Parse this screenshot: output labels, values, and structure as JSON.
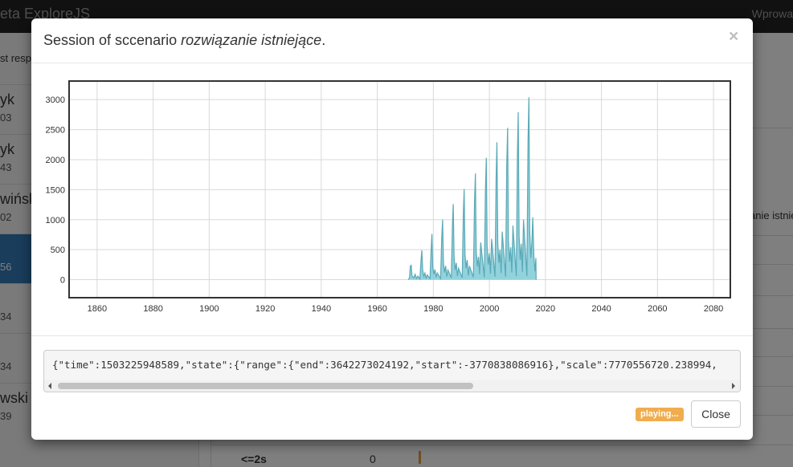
{
  "app": {
    "brand": "eta ExploreJS",
    "nav_right": "Wprowa"
  },
  "sidebar": {
    "header": "st resp",
    "items": [
      {
        "name": "yk",
        "sub": "03"
      },
      {
        "name": "yk",
        "sub": "43"
      },
      {
        "name": "wińsk",
        "sub": "02"
      },
      {
        "name": "",
        "sub": "56"
      },
      {
        "name": "",
        "sub": "34"
      },
      {
        "name": "",
        "sub": "34"
      },
      {
        "name": "wski",
        "sub": "39"
      }
    ]
  },
  "right_panel": {
    "fragment": "anie istnie",
    "bottom_label": "<=2s",
    "bottom_value": "0"
  },
  "modal": {
    "title_prefix": "Session of sccenario ",
    "title_scenario": "rozwiązanie istniejące",
    "title_suffix": ".",
    "close_symbol": "×",
    "json_text": "{\"time\":1503225948589,\"state\":{\"range\":{\"end\":3642273024192,\"start\":-3770838086916},\"scale\":7770556720.238994,",
    "status_badge": "playing...",
    "close_button": "Close"
  },
  "chart_data": {
    "type": "area",
    "title": "",
    "xlabel": "",
    "ylabel": "",
    "xlim": [
      1850,
      2086
    ],
    "ylim": [
      -300,
      3310
    ],
    "x_ticks": [
      1860,
      1880,
      1900,
      1920,
      1940,
      1960,
      1980,
      2000,
      2020,
      2040,
      2060,
      2080
    ],
    "y_ticks": [
      0,
      500,
      1000,
      1500,
      2000,
      2500,
      3000
    ],
    "grid": true,
    "colors": {
      "fill": "#7fcad6",
      "stroke": "#5aa9b6",
      "axis": "#333333",
      "grid": "#d9d9d9"
    },
    "series": [
      {
        "values": [
          [
            1971.0,
            0
          ],
          [
            1971.5,
            30
          ],
          [
            1971.8,
            230
          ],
          [
            1972.1,
            240
          ],
          [
            1972.4,
            60
          ],
          [
            1973.0,
            30
          ],
          [
            1973.5,
            90
          ],
          [
            1974.0,
            20
          ],
          [
            1974.5,
            60
          ],
          [
            1975.2,
            10
          ],
          [
            1975.6,
            320
          ],
          [
            1975.9,
            490
          ],
          [
            1976.2,
            160
          ],
          [
            1976.6,
            60
          ],
          [
            1977.0,
            110
          ],
          [
            1977.4,
            20
          ],
          [
            1977.8,
            80
          ],
          [
            1978.8,
            20
          ],
          [
            1979.2,
            500
          ],
          [
            1979.5,
            760
          ],
          [
            1979.8,
            210
          ],
          [
            1980.2,
            90
          ],
          [
            1980.6,
            170
          ],
          [
            1981.0,
            40
          ],
          [
            1981.4,
            110
          ],
          [
            1982.6,
            20
          ],
          [
            1983.0,
            700
          ],
          [
            1983.3,
            1000
          ],
          [
            1983.6,
            280
          ],
          [
            1984.0,
            120
          ],
          [
            1984.4,
            230
          ],
          [
            1984.8,
            50
          ],
          [
            1985.2,
            160
          ],
          [
            1986.4,
            30
          ],
          [
            1986.8,
            900
          ],
          [
            1987.1,
            1260
          ],
          [
            1987.4,
            360
          ],
          [
            1987.8,
            160
          ],
          [
            1988.2,
            280
          ],
          [
            1988.6,
            60
          ],
          [
            1989.0,
            190
          ],
          [
            1990.3,
            30
          ],
          [
            1990.7,
            1100
          ],
          [
            1991.0,
            1510
          ],
          [
            1991.3,
            420
          ],
          [
            1991.7,
            190
          ],
          [
            1992.1,
            330
          ],
          [
            1992.5,
            70
          ],
          [
            1992.9,
            230
          ],
          [
            1994.3,
            40
          ],
          [
            1994.7,
            1300
          ],
          [
            1995.0,
            1770
          ],
          [
            1995.3,
            480
          ],
          [
            1995.7,
            220
          ],
          [
            1996.1,
            380
          ],
          [
            1996.5,
            90
          ],
          [
            1996.9,
            620
          ],
          [
            1998.2,
            40
          ],
          [
            1998.6,
            1500
          ],
          [
            1998.9,
            2030
          ],
          [
            1999.2,
            550
          ],
          [
            1999.6,
            250
          ],
          [
            2000.0,
            440
          ],
          [
            2000.4,
            100
          ],
          [
            2000.8,
            680
          ],
          [
            2002.0,
            50
          ],
          [
            2002.4,
            1700
          ],
          [
            2002.7,
            2290
          ],
          [
            2003.0,
            600
          ],
          [
            2003.4,
            280
          ],
          [
            2003.8,
            500
          ],
          [
            2004.2,
            110
          ],
          [
            2004.6,
            800
          ],
          [
            2005.8,
            50
          ],
          [
            2006.2,
            1900
          ],
          [
            2006.5,
            2530
          ],
          [
            2006.8,
            670
          ],
          [
            2007.2,
            300
          ],
          [
            2007.6,
            540
          ],
          [
            2008.0,
            120
          ],
          [
            2008.4,
            900
          ],
          [
            2009.6,
            60
          ],
          [
            2010.0,
            2100
          ],
          [
            2010.3,
            2790
          ],
          [
            2010.6,
            730
          ],
          [
            2011.0,
            330
          ],
          [
            2011.4,
            600
          ],
          [
            2011.8,
            130
          ],
          [
            2012.2,
            1000
          ],
          [
            2013.4,
            60
          ],
          [
            2013.8,
            2300
          ],
          [
            2014.1,
            3040
          ],
          [
            2014.4,
            800
          ],
          [
            2014.8,
            360
          ],
          [
            2015.2,
            650
          ],
          [
            2015.5,
            1040
          ],
          [
            2015.9,
            380
          ],
          [
            2016.3,
            140
          ],
          [
            2016.6,
            360
          ],
          [
            2016.7,
            0
          ]
        ]
      }
    ]
  }
}
